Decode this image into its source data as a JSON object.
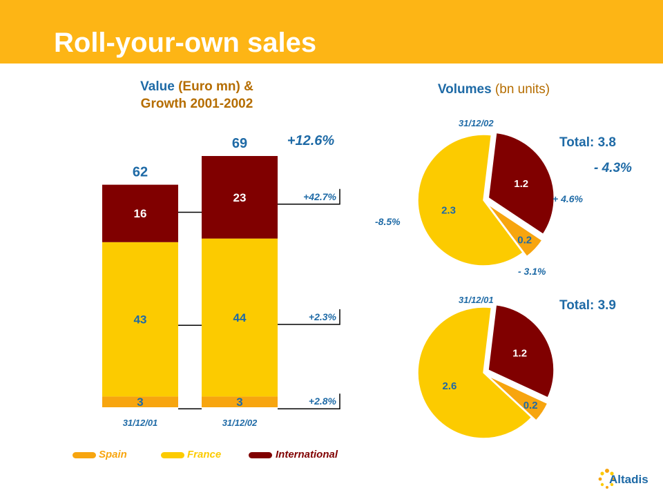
{
  "header": {
    "title": "Roll-your-own sales"
  },
  "left_panel": {
    "title_bold": "Value",
    "title_rest": " (Euro mn) &",
    "title_line2": "Growth 2001-2002"
  },
  "right_panel": {
    "title_bold": "Volumes",
    "title_rest": " (bn units)"
  },
  "legend": [
    {
      "label": "Spain",
      "color": "#f7a50f"
    },
    {
      "label": "France",
      "color": "#fccb00"
    },
    {
      "label": "International",
      "color": "#800000"
    }
  ],
  "logo": {
    "text": "Altadis"
  },
  "chart_data": [
    {
      "type": "bar",
      "stacked": true,
      "categories": [
        "31/12/01",
        "31/12/02"
      ],
      "series": [
        {
          "name": "Spain",
          "values": [
            3,
            3
          ],
          "color": "#f7a50f"
        },
        {
          "name": "France",
          "values": [
            43,
            44
          ],
          "color": "#fccb00"
        },
        {
          "name": "International",
          "values": [
            16,
            23
          ],
          "color": "#800000"
        }
      ],
      "totals": [
        "62",
        "69"
      ],
      "segment_labels": [
        [
          "3",
          "43",
          "16"
        ],
        [
          "3",
          "44",
          "23"
        ]
      ],
      "total_growth": "+12.6%",
      "growth_labels": [
        "+2.8%",
        "+2.3%",
        "+42.7%"
      ]
    },
    {
      "type": "pie",
      "date": "31/12/02",
      "total_label": "Total: 3.8",
      "total_growth": "- 4.3%",
      "slices": [
        {
          "name": "International",
          "value": 1.2,
          "label": "1.2",
          "growth": "+ 4.6%",
          "color": "#800000"
        },
        {
          "name": "Spain",
          "value": 0.2,
          "label": "0.2",
          "growth": "- 3.1%",
          "color": "#f7a50f"
        },
        {
          "name": "France",
          "value": 2.3,
          "label": "2.3",
          "growth": "-8.5%",
          "color": "#fccb00"
        }
      ]
    },
    {
      "type": "pie",
      "date": "31/12/01",
      "total_label": "Total: 3.9",
      "slices": [
        {
          "name": "International",
          "value": 1.2,
          "label": "1.2",
          "color": "#800000"
        },
        {
          "name": "Spain",
          "value": 0.2,
          "label": "0.2",
          "color": "#f7a50f"
        },
        {
          "name": "France",
          "value": 2.6,
          "label": "2.6",
          "color": "#fccb00"
        }
      ]
    }
  ]
}
